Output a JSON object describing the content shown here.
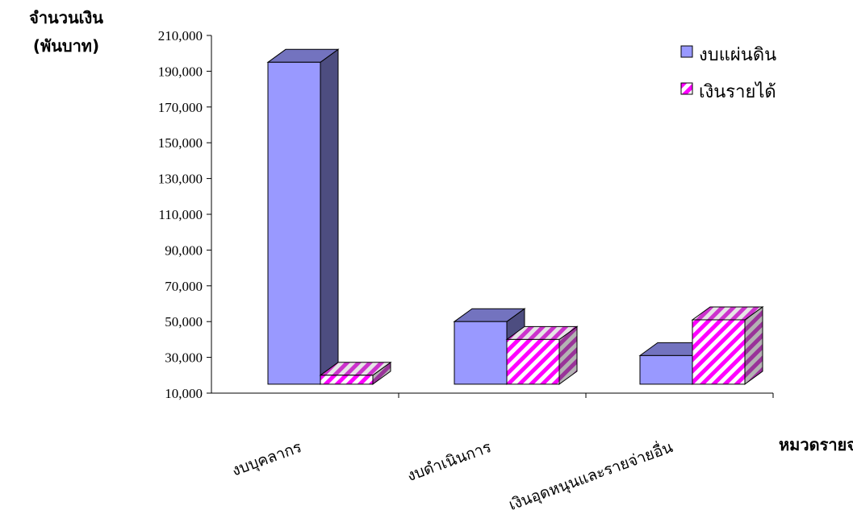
{
  "chart_data": {
    "type": "bar",
    "ylabel_line1": "จำนวนเงิน",
    "ylabel_line2": "(พันบาท)",
    "xlabel": "หมวดรายจ่าย",
    "categories": [
      "งบบุคลากร",
      "งบดำเนินการ",
      "เงินอุดหนุนและรายจ่ายอื่น"
    ],
    "series": [
      {
        "name": "งบแผ่นดิน",
        "values": [
          195000,
          50000,
          31000
        ],
        "color": "#9999ff",
        "side_color": "#4d4d80",
        "top_color": "#7373bf",
        "pattern": "solid"
      },
      {
        "name": "เงินรายได้",
        "values": [
          20000,
          40000,
          51000
        ],
        "color": "#ff00ff",
        "side_color": "#993399",
        "top_color": "#cc33cc",
        "pattern": "diagonal-hatch"
      }
    ],
    "ylim": [
      10000,
      210000
    ],
    "yticks": [
      10000,
      30000,
      50000,
      70000,
      90000,
      110000,
      130000,
      150000,
      170000,
      190000,
      210000
    ],
    "ytick_labels": [
      "10,000",
      "30,000",
      "50,000",
      "70,000",
      "90,000",
      "110,000",
      "130,000",
      "150,000",
      "170,000",
      "190,000",
      "210,000"
    ],
    "bar_base": 15000,
    "legend_position": "top-right",
    "grid": false,
    "style": "3d-column"
  }
}
